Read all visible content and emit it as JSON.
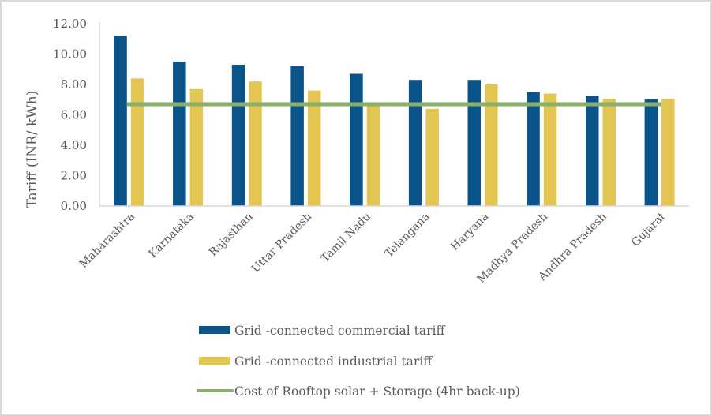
{
  "chart_data": {
    "type": "bar",
    "title": "",
    "xlabel": "",
    "ylabel": "Tariff (INR/ kWh)",
    "ylim": [
      0,
      12
    ],
    "yticks": [
      0,
      2,
      4,
      6,
      8,
      10,
      12
    ],
    "ytick_labels": [
      "0.00",
      "2.00",
      "4.00",
      "6.00",
      "8.00",
      "10.00",
      "12.00"
    ],
    "grid": false,
    "legend_position": "bottom",
    "categories": [
      "Maharashtra",
      "Karnataka",
      "Rajasthan",
      "Uttar Pradesh",
      "Tamil Nadu",
      "Telangana",
      "Haryana",
      "Madhya Pradesh",
      "Andhra Pradesh",
      "Gujarat"
    ],
    "series": [
      {
        "name": "Grid -connected commercial tariff",
        "type": "bar",
        "color": "#0B548A",
        "values": [
          11.2,
          9.5,
          9.3,
          9.2,
          8.7,
          8.3,
          8.3,
          7.5,
          7.25,
          7.05
        ]
      },
      {
        "name": "Grid -connected industrial tariff",
        "type": "bar",
        "color": "#E3C652",
        "values": [
          8.4,
          7.7,
          8.2,
          7.6,
          6.8,
          6.4,
          8.0,
          7.4,
          7.05,
          7.05
        ]
      },
      {
        "name": "Cost of Rooftop solar + Storage (4hr back-up)",
        "type": "line",
        "color": "#8AAF6A",
        "values": [
          6.7,
          6.7,
          6.7,
          6.7,
          6.7,
          6.7,
          6.7,
          6.7,
          6.7,
          6.7
        ]
      }
    ]
  }
}
